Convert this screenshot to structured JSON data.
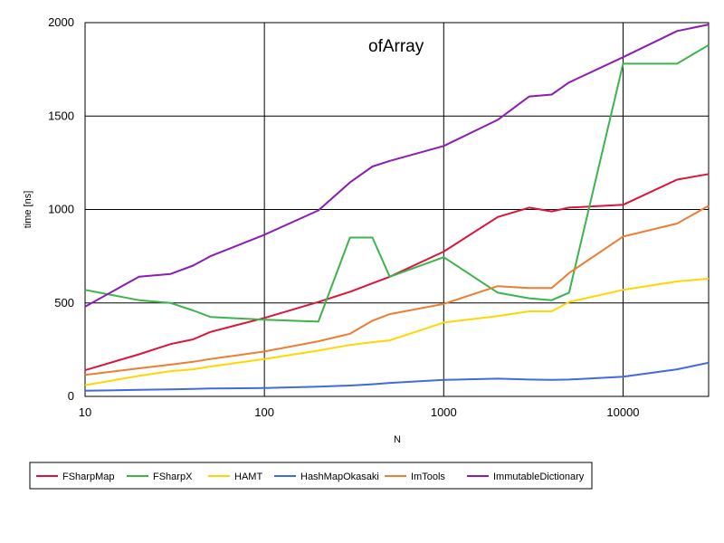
{
  "chart_data": {
    "type": "line",
    "title": "ofArray",
    "xlabel": "N",
    "ylabel": "time [ns]",
    "x_scale": "log",
    "xlim": [
      10,
      30000
    ],
    "ylim": [
      0,
      2000
    ],
    "x_ticks": [
      10,
      100,
      1000,
      10000
    ],
    "x_tick_labels": [
      "10",
      "100",
      "1000",
      "10000"
    ],
    "y_ticks": [
      0,
      500,
      1000,
      1500,
      2000
    ],
    "y_tick_labels": [
      "0",
      "500",
      "1000",
      "1500",
      "2000"
    ],
    "grid": true,
    "legend_position": "bottom",
    "x": [
      10,
      20,
      30,
      40,
      50,
      100,
      200,
      300,
      400,
      500,
      1000,
      2000,
      3000,
      4000,
      5000,
      10000,
      20000,
      30000
    ],
    "series": [
      {
        "name": "FSharpMap",
        "color": "#dc143c",
        "values": [
          140,
          225,
          280,
          305,
          345,
          420,
          505,
          560,
          605,
          640,
          775,
          960,
          1010,
          990,
          1010,
          1025,
          1160,
          1190
        ]
      },
      {
        "name": "FSharpX",
        "color": "#3cb44b",
        "values": [
          570,
          515,
          500,
          460,
          425,
          410,
          400,
          850,
          850,
          640,
          745,
          555,
          525,
          515,
          555,
          1780,
          1780,
          1880
        ]
      },
      {
        "name": "HAMT",
        "color": "#ffd700",
        "values": [
          60,
          110,
          135,
          145,
          160,
          200,
          245,
          275,
          290,
          300,
          395,
          430,
          455,
          455,
          505,
          570,
          615,
          630
        ]
      },
      {
        "name": "HashMapOkasaki",
        "color": "#4169e1",
        "values": [
          30,
          35,
          38,
          40,
          42,
          45,
          52,
          58,
          65,
          72,
          88,
          95,
          90,
          88,
          90,
          105,
          145,
          180
        ]
      },
      {
        "name": "ImTools",
        "color": "#ed7d31",
        "values": [
          115,
          150,
          170,
          185,
          200,
          240,
          295,
          335,
          405,
          440,
          495,
          590,
          580,
          580,
          660,
          855,
          925,
          1020
        ]
      },
      {
        "name": "ImmutableDictionary",
        "color": "#8b1db3",
        "values": [
          480,
          640,
          655,
          700,
          750,
          865,
          995,
          1145,
          1230,
          1260,
          1340,
          1480,
          1605,
          1615,
          1680,
          1815,
          1955,
          1990
        ]
      }
    ]
  }
}
